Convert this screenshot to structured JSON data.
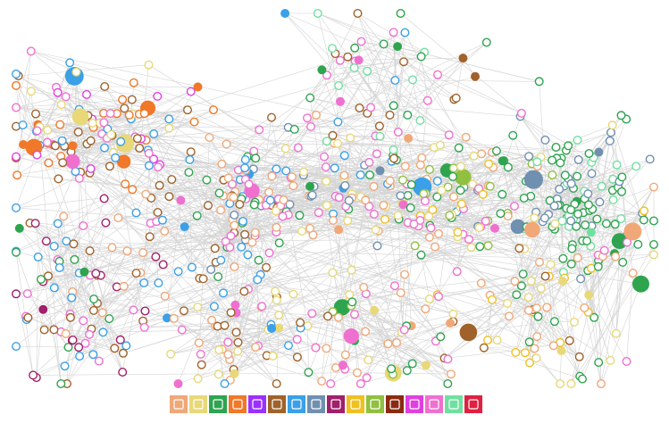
{
  "legend": {
    "items": [
      {
        "color": "#f0a878"
      },
      {
        "color": "#e8d878"
      },
      {
        "color": "#2ea44f"
      },
      {
        "color": "#f07828"
      },
      {
        "color": "#9b30ff"
      },
      {
        "color": "#a0622a"
      },
      {
        "color": "#3aa0e8"
      },
      {
        "color": "#7090b0"
      },
      {
        "color": "#a0206a"
      },
      {
        "color": "#f0c020"
      },
      {
        "color": "#90c040"
      },
      {
        "color": "#8b2a10"
      },
      {
        "color": "#e040e0"
      },
      {
        "color": "#f070d0"
      },
      {
        "color": "#70e0a0"
      },
      {
        "color": "#e02040"
      }
    ]
  }
}
